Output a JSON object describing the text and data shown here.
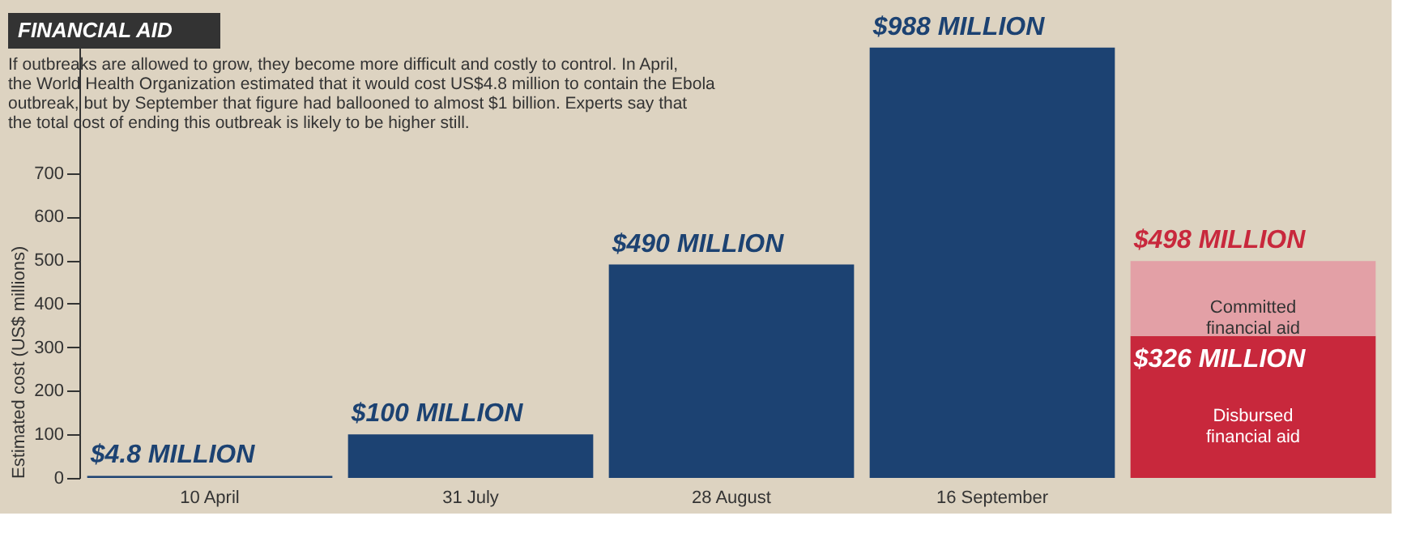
{
  "chart_data": {
    "type": "bar",
    "title": "FINANCIAL AID",
    "subtitle": "If outbreaks are allowed to grow, they become more difficult and costly to control. In April, the World Health Organization estimated that it would cost US$4.8 million to contain the Ebola outbreak, but by September that figure had ballooned to almost $1 billion. Experts say that the total cost of ending this outbreak is likely to be higher still.",
    "ylabel": "Estimated cost (US$ millions)",
    "categories": [
      "10 April",
      "31 July",
      "28 August",
      "16 September",
      null
    ],
    "stacked": true,
    "series": [
      {
        "color": "#1c4272",
        "values": [
          4.8,
          100,
          490,
          988,
          null
        ],
        "value_labels": [
          "$4.8 MILLION",
          "$100 MILLION",
          "$490 MILLION",
          "$988 MILLION",
          null
        ]
      },
      {
        "name": "Disbursed financial aid",
        "color": "#c8283c",
        "values": [
          null,
          null,
          null,
          null,
          326
        ],
        "value_labels": [
          null,
          null,
          null,
          null,
          "$326 MILLION"
        ]
      },
      {
        "name": "Committed financial aid",
        "color": "#e3a0a6",
        "values": [
          null,
          null,
          null,
          null,
          172
        ]
      }
    ],
    "totals": [
      null,
      null,
      null,
      null,
      "$498 MILLION"
    ],
    "ylim": [
      0,
      1060
    ],
    "yticks": [
      0,
      100,
      200,
      300,
      400,
      500,
      600,
      700
    ],
    "grid": false
  }
}
